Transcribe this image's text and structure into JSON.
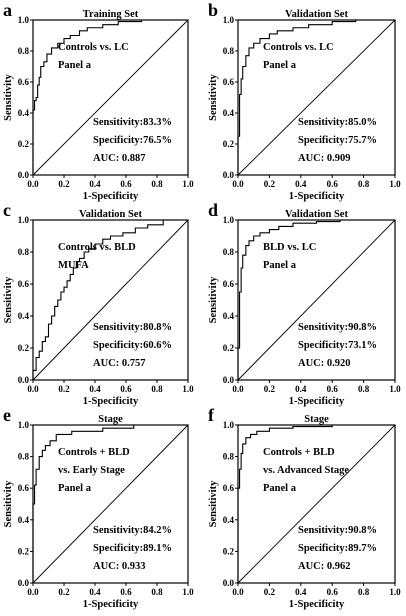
{
  "chart_data": [
    {
      "type": "line",
      "letter": "a",
      "title": "Training Set",
      "xlabel": "1-Specificity",
      "ylabel": "Sensitivity",
      "xlim": [
        0,
        1
      ],
      "ylim": [
        0,
        1
      ],
      "xticks": [
        "0.0",
        "0.2",
        "0.4",
        "0.6",
        "0.8",
        "1.0"
      ],
      "yticks": [
        "0.0",
        "0.2",
        "0.4",
        "0.6",
        "0.8",
        "1.0"
      ],
      "annotations_top": [
        "Controls vs. LC",
        "Panel a"
      ],
      "annotations_bottom": [
        "Sensitivity:83.3%",
        "Specificity:76.5%",
        "AUC: 0.887"
      ],
      "series": [
        {
          "x": [
            0,
            0,
            0.01,
            0.01,
            0.02,
            0.02,
            0.03,
            0.03,
            0.04,
            0.04,
            0.05,
            0.05,
            0.07,
            0.07,
            0.09,
            0.09,
            0.12,
            0.12,
            0.16,
            0.16,
            0.2,
            0.2,
            0.24,
            0.24,
            0.3,
            0.3,
            0.35,
            0.35,
            0.45,
            0.45,
            0.55,
            0.55,
            0.7,
            0.7,
            1
          ],
          "y": [
            0,
            0.42,
            0.42,
            0.48,
            0.48,
            0.5,
            0.5,
            0.58,
            0.58,
            0.63,
            0.63,
            0.7,
            0.7,
            0.73,
            0.73,
            0.78,
            0.78,
            0.82,
            0.82,
            0.85,
            0.85,
            0.88,
            0.88,
            0.9,
            0.9,
            0.93,
            0.93,
            0.95,
            0.95,
            0.97,
            0.97,
            0.99,
            0.99,
            1,
            1
          ]
        },
        {
          "x": [
            0,
            1
          ],
          "y": [
            0,
            1
          ]
        }
      ]
    },
    {
      "type": "line",
      "letter": "b",
      "title": "Validation Set",
      "xlabel": "1-Specificity",
      "ylabel": "Sensitivity",
      "xlim": [
        0,
        1
      ],
      "ylim": [
        0,
        1
      ],
      "xticks": [
        "0.0",
        "0.2",
        "0.4",
        "0.6",
        "0.8",
        "1.0"
      ],
      "yticks": [
        "0.0",
        "0.2",
        "0.4",
        "0.6",
        "0.8",
        "1.0"
      ],
      "annotations_top": [
        "Controls vs. LC",
        "Panel a"
      ],
      "annotations_bottom": [
        "Sensitivity:85.0%",
        "Specificity:75.7%",
        "AUC: 0.909"
      ],
      "series": [
        {
          "x": [
            0,
            0,
            0.01,
            0.01,
            0.02,
            0.02,
            0.03,
            0.03,
            0.05,
            0.05,
            0.07,
            0.07,
            0.1,
            0.1,
            0.14,
            0.14,
            0.2,
            0.2,
            0.25,
            0.25,
            0.35,
            0.35,
            0.45,
            0.45,
            0.6,
            0.6,
            0.75,
            0.75,
            1
          ],
          "y": [
            0,
            0.25,
            0.25,
            0.52,
            0.52,
            0.62,
            0.62,
            0.7,
            0.7,
            0.77,
            0.77,
            0.82,
            0.82,
            0.85,
            0.85,
            0.88,
            0.88,
            0.91,
            0.91,
            0.93,
            0.93,
            0.95,
            0.95,
            0.97,
            0.97,
            0.99,
            0.99,
            1,
            1
          ]
        },
        {
          "x": [
            0,
            1
          ],
          "y": [
            0,
            1
          ]
        }
      ]
    },
    {
      "type": "line",
      "letter": "c",
      "title": "Validation Set",
      "xlabel": "1-Specificity",
      "ylabel": "Sensitivity",
      "xlim": [
        0,
        1
      ],
      "ylim": [
        0,
        1
      ],
      "xticks": [
        "0.0",
        "0.2",
        "0.4",
        "0.6",
        "0.8",
        "1.0"
      ],
      "yticks": [
        "0.0",
        "0.2",
        "0.4",
        "0.6",
        "0.8",
        "1.0"
      ],
      "annotations_top": [
        "Controls vs. BLD",
        "MUFA"
      ],
      "annotations_bottom": [
        "Sensitivity:80.8%",
        "Specificity:60.6%",
        "AUC: 0.757"
      ],
      "series": [
        {
          "x": [
            0,
            0,
            0.02,
            0.02,
            0.04,
            0.04,
            0.06,
            0.06,
            0.08,
            0.08,
            0.1,
            0.1,
            0.12,
            0.12,
            0.14,
            0.14,
            0.16,
            0.16,
            0.18,
            0.18,
            0.2,
            0.2,
            0.22,
            0.22,
            0.24,
            0.24,
            0.26,
            0.26,
            0.28,
            0.28,
            0.3,
            0.3,
            0.33,
            0.33,
            0.36,
            0.36,
            0.4,
            0.4,
            0.45,
            0.45,
            0.5,
            0.5,
            0.58,
            0.58,
            0.66,
            0.66,
            0.74,
            0.74,
            0.84,
            0.84,
            1
          ],
          "y": [
            0,
            0.06,
            0.06,
            0.14,
            0.14,
            0.18,
            0.18,
            0.24,
            0.24,
            0.27,
            0.27,
            0.35,
            0.35,
            0.4,
            0.4,
            0.46,
            0.46,
            0.5,
            0.5,
            0.55,
            0.55,
            0.58,
            0.58,
            0.62,
            0.62,
            0.66,
            0.66,
            0.7,
            0.7,
            0.74,
            0.74,
            0.76,
            0.76,
            0.8,
            0.8,
            0.82,
            0.82,
            0.85,
            0.85,
            0.88,
            0.88,
            0.9,
            0.9,
            0.92,
            0.92,
            0.95,
            0.95,
            0.97,
            0.97,
            1,
            1
          ]
        },
        {
          "x": [
            0,
            1
          ],
          "y": [
            0,
            1
          ]
        }
      ]
    },
    {
      "type": "line",
      "letter": "d",
      "title": "Validation Set",
      "xlabel": "1-Specificity",
      "ylabel": "Sensitivity",
      "xlim": [
        0,
        1
      ],
      "ylim": [
        0,
        1
      ],
      "xticks": [
        "0.0",
        "0.2",
        "0.4",
        "0.6",
        "0.8",
        "1.0"
      ],
      "yticks": [
        "0.0",
        "0.2",
        "0.4",
        "0.6",
        "0.8",
        "1.0"
      ],
      "annotations_top": [
        "BLD vs. LC",
        "Panel a"
      ],
      "annotations_bottom": [
        "Sensitivity:90.8%",
        "Specificity:73.1%",
        "AUC: 0.920"
      ],
      "series": [
        {
          "x": [
            0,
            0,
            0.01,
            0.01,
            0.02,
            0.02,
            0.03,
            0.03,
            0.05,
            0.05,
            0.07,
            0.07,
            0.1,
            0.1,
            0.14,
            0.14,
            0.2,
            0.2,
            0.26,
            0.26,
            0.35,
            0.35,
            0.5,
            0.5,
            0.65,
            0.65,
            1
          ],
          "y": [
            0,
            0.2,
            0.2,
            0.55,
            0.55,
            0.7,
            0.7,
            0.78,
            0.78,
            0.84,
            0.84,
            0.87,
            0.87,
            0.9,
            0.9,
            0.92,
            0.92,
            0.94,
            0.94,
            0.96,
            0.96,
            0.98,
            0.98,
            0.99,
            0.99,
            1,
            1
          ]
        },
        {
          "x": [
            0,
            1
          ],
          "y": [
            0,
            1
          ]
        }
      ]
    },
    {
      "type": "line",
      "letter": "e",
      "title": "Stage",
      "xlabel": "1-Specificity",
      "ylabel": "Sensitivity",
      "xlim": [
        0,
        1
      ],
      "ylim": [
        0,
        1
      ],
      "xticks": [
        "0.0",
        "0.2",
        "0.4",
        "0.6",
        "0.8",
        "1.0"
      ],
      "yticks": [
        "0.0",
        "0.2",
        "0.4",
        "0.6",
        "0.8",
        "1.0"
      ],
      "annotations_top": [
        "Controls + BLD",
        "vs. Early Stage",
        "Panel a"
      ],
      "annotations_bottom": [
        "Sensitivity:84.2%",
        "Specificity:89.1%",
        "AUC: 0.933"
      ],
      "series": [
        {
          "x": [
            0,
            0,
            0.01,
            0.01,
            0.02,
            0.02,
            0.04,
            0.04,
            0.06,
            0.06,
            0.08,
            0.08,
            0.11,
            0.11,
            0.15,
            0.15,
            0.25,
            0.25,
            0.45,
            0.45,
            0.65,
            0.65,
            1
          ],
          "y": [
            0,
            0.5,
            0.5,
            0.62,
            0.62,
            0.72,
            0.72,
            0.8,
            0.8,
            0.84,
            0.84,
            0.87,
            0.87,
            0.9,
            0.9,
            0.94,
            0.94,
            0.96,
            0.96,
            0.98,
            0.98,
            1,
            1
          ]
        },
        {
          "x": [
            0,
            1
          ],
          "y": [
            0,
            1
          ]
        }
      ]
    },
    {
      "type": "line",
      "letter": "f",
      "title": "Stage",
      "xlabel": "1-Specificity",
      "ylabel": "Sensitivity",
      "xlim": [
        0,
        1
      ],
      "ylim": [
        0,
        1
      ],
      "xticks": [
        "0.0",
        "0.2",
        "0.4",
        "0.6",
        "0.8",
        "1.0"
      ],
      "yticks": [
        "0.0",
        "0.2",
        "0.4",
        "0.6",
        "0.8",
        "1.0"
      ],
      "annotations_top": [
        "Controls + BLD",
        "vs. Advanced Stage",
        "Panel a"
      ],
      "annotations_bottom": [
        "Sensitivity:90.8%",
        "Specificity:89.7%",
        "AUC: 0.962"
      ],
      "series": [
        {
          "x": [
            0,
            0,
            0.01,
            0.01,
            0.02,
            0.02,
            0.03,
            0.03,
            0.05,
            0.05,
            0.08,
            0.08,
            0.12,
            0.12,
            0.2,
            0.2,
            0.35,
            0.35,
            0.6,
            0.6,
            1
          ],
          "y": [
            0,
            0.6,
            0.6,
            0.72,
            0.72,
            0.82,
            0.82,
            0.88,
            0.88,
            0.92,
            0.92,
            0.94,
            0.94,
            0.96,
            0.96,
            0.98,
            0.98,
            0.99,
            0.99,
            1,
            1
          ]
        },
        {
          "x": [
            0,
            1
          ],
          "y": [
            0,
            1
          ]
        }
      ]
    }
  ]
}
